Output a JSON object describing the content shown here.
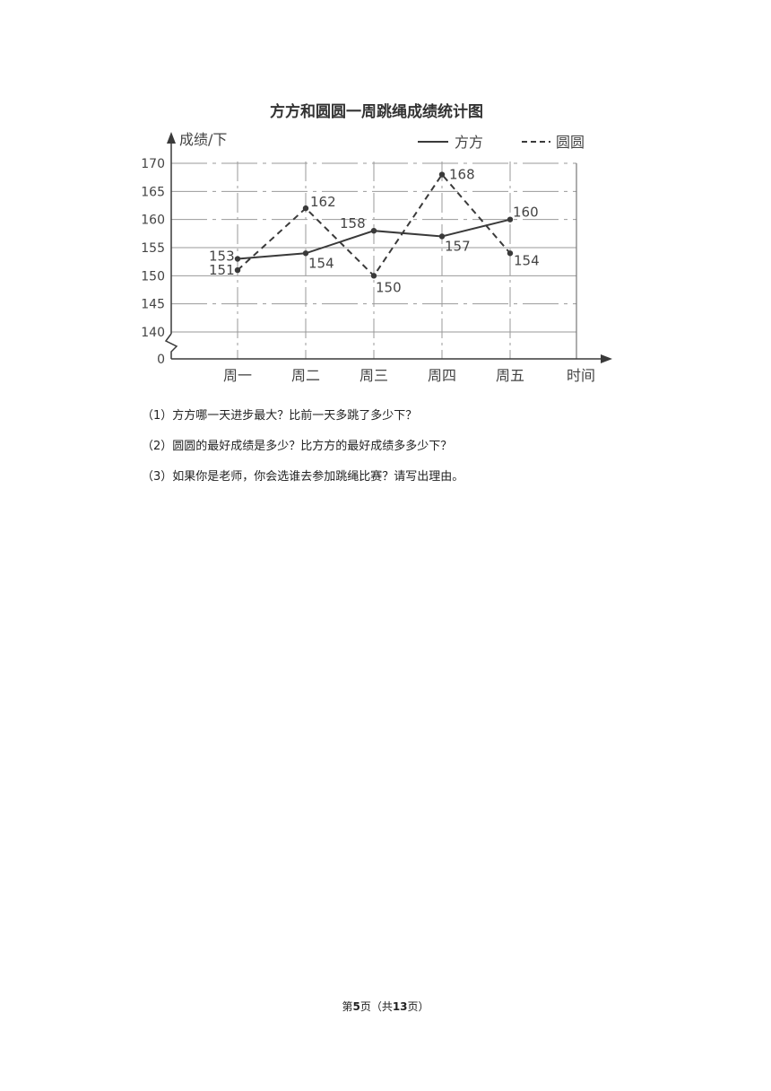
{
  "chart_data": {
    "type": "line",
    "title": "方方和圆圆一周跳绳成绩统计图",
    "ylabel": "成绩/下",
    "xlabel": "时间",
    "categories": [
      "周一",
      "周二",
      "周三",
      "周四",
      "周五"
    ],
    "series": [
      {
        "name": "方方",
        "style": "solid",
        "values": [
          153,
          154,
          158,
          157,
          160
        ]
      },
      {
        "name": "圆圆",
        "style": "dashed",
        "values": [
          151,
          162,
          150,
          168,
          154
        ]
      }
    ],
    "y_ticks": [
      "0",
      "140",
      "145",
      "150",
      "155",
      "160",
      "165",
      "170"
    ],
    "ylim": [
      140,
      170
    ],
    "axis_break": true,
    "grid": true,
    "legend_position": "top-right",
    "line_color": "#3a3a3a"
  },
  "questions": [
    "（1）方方哪一天进步最大？比前一天多跳了多少下？",
    "（2）圆圆的最好成绩是多少？比方方的最好成绩多多少下？",
    "（3）如果你是老师，你会选谁去参加跳绳比赛？请写出理由。"
  ],
  "footer": {
    "prefix": "第",
    "page": "5",
    "mid": "页（共",
    "total": "13",
    "suffix": "页）"
  }
}
